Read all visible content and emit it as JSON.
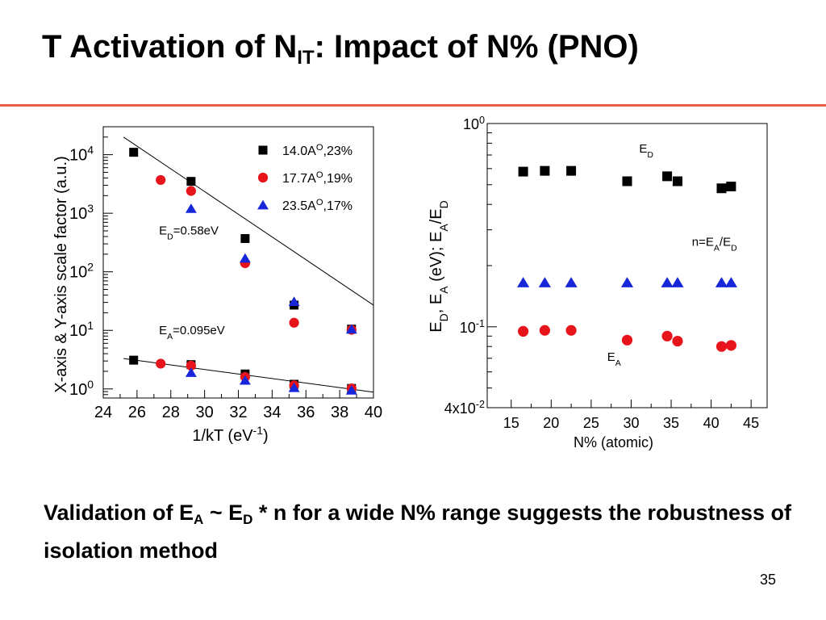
{
  "slide": {
    "title": {
      "before": "T Activation of N",
      "sub": "IT",
      "after": ": Impact of N% (PNO)"
    },
    "conclusion": {
      "part1": "Validation of E",
      "sub1": "A",
      "part2": " ~ E",
      "sub2": "D",
      "part3": " * n for a wide N% range suggests the robustness of isolation method"
    },
    "page_number": "35"
  },
  "colors": {
    "accent_rule": "#e85d3d",
    "series_square": "#000000",
    "series_circle": "#e8141c",
    "series_triangle": "#1726d9"
  },
  "chart_data": [
    {
      "type": "scatter",
      "name": "arrhenius-plot",
      "xlabel": {
        "text": "1/kT (eV",
        "sup": "-1",
        "tail": ")"
      },
      "ylabel": "X-axis & Y-axis scale factor (a.u.)",
      "xlim": [
        24,
        40
      ],
      "ylim": [
        0.7,
        30000
      ],
      "yscale": "log",
      "xticks": [
        24,
        26,
        28,
        30,
        32,
        34,
        36,
        38,
        40
      ],
      "yticks": [
        {
          "value": 1,
          "base": "10",
          "exp": "0"
        },
        {
          "value": 10,
          "base": "10",
          "exp": "1"
        },
        {
          "value": 100,
          "base": "10",
          "exp": "2"
        },
        {
          "value": 1000,
          "base": "10",
          "exp": "3"
        },
        {
          "value": 10000,
          "base": "10",
          "exp": "4"
        }
      ],
      "legend": {
        "position": "top-right"
      },
      "series": [
        {
          "name": {
            "base": "14.0A",
            "sup": "O",
            "tail": ",23%"
          },
          "marker": "square",
          "color": "#000000",
          "points": [
            [
              25.8,
              11000
            ],
            [
              29.2,
              3500
            ],
            [
              32.4,
              370
            ],
            [
              35.3,
              27
            ],
            [
              38.7,
              10.5
            ],
            [
              25.8,
              3.1
            ],
            [
              29.2,
              2.6
            ],
            [
              32.4,
              1.8
            ],
            [
              35.3,
              1.2
            ],
            [
              38.7,
              1.02
            ]
          ]
        },
        {
          "name": {
            "base": "17.7A",
            "sup": "O",
            "tail": ",19%"
          },
          "marker": "circle",
          "color": "#e8141c",
          "points": [
            [
              27.4,
              3700
            ],
            [
              29.2,
              2400
            ],
            [
              32.4,
              140
            ],
            [
              35.3,
              13.5
            ],
            [
              38.7,
              10.2
            ],
            [
              27.4,
              2.7
            ],
            [
              29.2,
              2.5
            ],
            [
              32.4,
              1.6
            ],
            [
              35.3,
              1.15
            ],
            [
              38.7,
              1.02
            ]
          ]
        },
        {
          "name": {
            "base": "23.5A",
            "sup": "O",
            "tail": ",17%"
          },
          "marker": "triangle",
          "color": "#1726d9",
          "points": [
            [
              29.2,
              1200
            ],
            [
              32.4,
              170
            ],
            [
              35.3,
              31
            ],
            [
              38.7,
              10.5
            ],
            [
              29.2,
              1.9
            ],
            [
              32.4,
              1.4
            ],
            [
              35.3,
              1.05
            ],
            [
              38.7,
              0.95
            ]
          ]
        }
      ],
      "fit_lines": [
        {
          "points": [
            [
              25.2,
              20000
            ],
            [
              40,
              27
            ]
          ]
        },
        {
          "points": [
            [
              25.2,
              3.3
            ],
            [
              40,
              0.88
            ]
          ]
        }
      ],
      "annotations": [
        {
          "base": "E",
          "sub": "D",
          "tail": "=0.58eV",
          "at": [
            27.3,
            430
          ]
        },
        {
          "base": "E",
          "sub": "A",
          "tail": "=0.095eV",
          "at": [
            27.3,
            8.6
          ]
        }
      ]
    },
    {
      "type": "scatter",
      "name": "nitrogen-dependence",
      "xlabel": {
        "text": "N% (atomic)",
        "sup": "",
        "tail": ""
      },
      "ylabel": "E_D, E_A (eV); E_A/E_D",
      "xlim": [
        12,
        47
      ],
      "ylim": [
        0.04,
        1.0
      ],
      "yscale": "log",
      "xticks": [
        15,
        20,
        25,
        30,
        35,
        40,
        45
      ],
      "yticks": [
        {
          "value": 0.04,
          "base": "4x10",
          "exp": "-2"
        },
        {
          "value": 0.1,
          "base": "10",
          "exp": "-1"
        },
        {
          "value": 1,
          "base": "10",
          "exp": "0"
        }
      ],
      "series": [
        {
          "name": {
            "base": "E",
            "sub": "D",
            "tail": ""
          },
          "marker": "square",
          "color": "#000000",
          "points": [
            [
              16.5,
              0.58
            ],
            [
              19.2,
              0.585
            ],
            [
              22.5,
              0.585
            ],
            [
              29.5,
              0.52
            ],
            [
              34.5,
              0.55
            ],
            [
              35.8,
              0.52
            ],
            [
              41.3,
              0.48
            ],
            [
              42.5,
              0.49
            ]
          ]
        },
        {
          "name": {
            "base": "n=E",
            "sub": "A",
            "tail": "/E",
            "sub2": "D"
          },
          "marker": "triangle",
          "color": "#1726d9",
          "points": [
            [
              16.5,
              0.165
            ],
            [
              19.2,
              0.165
            ],
            [
              22.5,
              0.165
            ],
            [
              29.5,
              0.165
            ],
            [
              34.5,
              0.165
            ],
            [
              35.8,
              0.165
            ],
            [
              41.3,
              0.165
            ],
            [
              42.5,
              0.165
            ]
          ]
        },
        {
          "name": {
            "base": "E",
            "sub": "A",
            "tail": ""
          },
          "marker": "circle",
          "color": "#e8141c",
          "points": [
            [
              16.5,
              0.095
            ],
            [
              19.2,
              0.096
            ],
            [
              22.5,
              0.096
            ],
            [
              29.5,
              0.086
            ],
            [
              34.5,
              0.09
            ],
            [
              35.8,
              0.085
            ],
            [
              41.3,
              0.08
            ],
            [
              42.5,
              0.081
            ]
          ]
        }
      ],
      "annotations": [
        {
          "base": "E",
          "sub": "D",
          "tail": "",
          "at": [
            31,
            0.72
          ]
        },
        {
          "base": "n=E",
          "sub": "A",
          "tail": "/E",
          "sub2": "D",
          "at": [
            37.6,
            0.25
          ]
        },
        {
          "base": "E",
          "sub": "A",
          "tail": "",
          "at": [
            27,
            0.068
          ]
        }
      ]
    }
  ]
}
